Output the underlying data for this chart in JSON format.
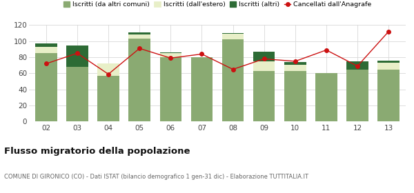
{
  "years": [
    "02",
    "03",
    "04",
    "05",
    "06",
    "07",
    "08",
    "09",
    "10",
    "11",
    "12",
    "13"
  ],
  "iscritti_comuni": [
    85,
    68,
    57,
    103,
    80,
    80,
    102,
    63,
    63,
    60,
    65,
    65
  ],
  "iscritti_estero": [
    8,
    0,
    15,
    5,
    5,
    0,
    7,
    12,
    8,
    0,
    0,
    8
  ],
  "iscritti_altri": [
    4,
    27,
    0,
    3,
    1,
    0,
    1,
    12,
    3,
    0,
    10,
    3
  ],
  "cancellati": [
    72,
    85,
    59,
    91,
    79,
    84,
    65,
    78,
    75,
    89,
    69,
    112
  ],
  "color_comuni": "#8aaa72",
  "color_estero": "#e8efc8",
  "color_altri": "#2d6b35",
  "color_cancellati": "#cc1111",
  "ylim": [
    0,
    120
  ],
  "yticks": [
    0,
    20,
    40,
    60,
    80,
    100,
    120
  ],
  "legend_labels": [
    "Iscritti (da altri comuni)",
    "Iscritti (dall'estero)",
    "Iscritti (altri)",
    "Cancellati dall'Anagrafe"
  ],
  "title": "Flusso migratorio della popolazione",
  "subtitle": "COMUNE DI GIRONICO (CO) - Dati ISTAT (bilancio demografico 1 gen-31 dic) - Elaborazione TUTTITALIA.IT",
  "bg_color": "#ffffff",
  "grid_color": "#d8d8d8"
}
